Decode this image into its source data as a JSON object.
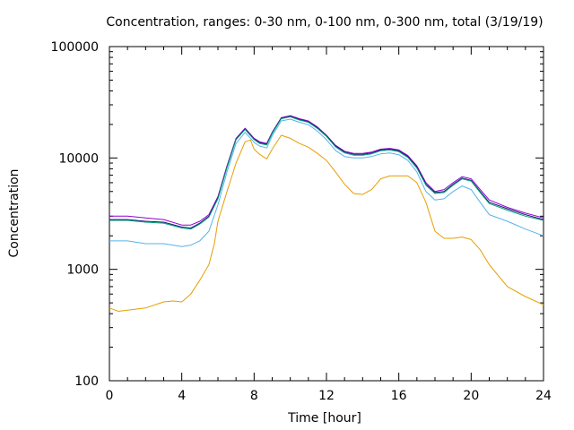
{
  "chart_data": {
    "type": "line",
    "title": "Concentration, ranges: 0-30 nm, 0-100 nm, 0-300 nm, total (3/19/19)",
    "xlabel": "Time [hour]",
    "ylabel": "Concentration",
    "xlim": [
      0,
      24
    ],
    "ylim": [
      100,
      100000
    ],
    "yscale": "log",
    "xticks": [
      "0",
      "4",
      "8",
      "12",
      "16",
      "20",
      "24"
    ],
    "yticks": [
      "100",
      "1000",
      "10000",
      "100000"
    ],
    "grid": false,
    "colors": {
      "total": "#1a1a7a",
      "range_0_300": "#9400d3",
      "range_0_100": "#009e73",
      "range_0_30": "#56b4e9",
      "orange": "#e69f00"
    },
    "series": [
      {
        "key": "purple",
        "color": "#9400d3",
        "x": [
          0,
          1,
          2,
          3,
          4,
          4.5,
          5,
          5.5,
          6,
          6.5,
          7,
          7.5,
          8,
          8.3,
          8.7,
          9,
          9.5,
          10,
          10.5,
          11,
          11.5,
          12,
          12.5,
          13,
          13.5,
          14,
          14.5,
          15,
          15.5,
          16,
          16.5,
          17,
          17.5,
          18,
          18.5,
          19,
          19.5,
          20,
          20.5,
          21,
          22,
          23,
          24
        ],
        "y": [
          3000,
          3000,
          2900,
          2800,
          2500,
          2500,
          2700,
          3100,
          4500,
          8500,
          15000,
          18500,
          15000,
          14000,
          13500,
          17000,
          23000,
          24000,
          22500,
          21500,
          19000,
          16000,
          13000,
          11500,
          11000,
          11000,
          11300,
          12000,
          12200,
          11800,
          10500,
          8500,
          6000,
          5000,
          5200,
          6000,
          6800,
          6500,
          5200,
          4200,
          3600,
          3200,
          2900
        ]
      },
      {
        "key": "navy",
        "color": "#1a1a7a",
        "x": [
          0,
          1,
          2,
          3,
          4,
          4.5,
          5,
          5.5,
          6,
          6.5,
          7,
          7.5,
          8,
          8.3,
          8.7,
          9,
          9.5,
          10,
          10.5,
          11,
          11.5,
          12,
          12.5,
          13,
          13.5,
          14,
          14.5,
          15,
          15.5,
          16,
          16.5,
          17,
          17.5,
          18,
          18.5,
          19,
          19.5,
          20,
          20.5,
          21,
          22,
          23,
          24
        ],
        "y": [
          2800,
          2800,
          2700,
          2650,
          2400,
          2350,
          2600,
          3000,
          4400,
          8300,
          14800,
          18200,
          14800,
          13700,
          13300,
          16800,
          22800,
          23700,
          22200,
          21200,
          18700,
          15800,
          12800,
          11300,
          10800,
          10800,
          11100,
          11800,
          12000,
          11600,
          10300,
          8300,
          5800,
          4900,
          5000,
          5800,
          6600,
          6300,
          5000,
          4000,
          3500,
          3100,
          2800
        ]
      },
      {
        "key": "teal",
        "color": "#009e73",
        "x": [
          0,
          1,
          2,
          3,
          4,
          4.5,
          5,
          5.5,
          6,
          6.5,
          7,
          7.5,
          8,
          8.3,
          8.7,
          9,
          9.5,
          10,
          10.5,
          11,
          11.5,
          12,
          12.5,
          13,
          13.5,
          14,
          14.5,
          15,
          15.5,
          16,
          16.5,
          17,
          17.5,
          18,
          18.5,
          19,
          19.5,
          20,
          20.5,
          21,
          22,
          23,
          24
        ],
        "y": [
          2750,
          2750,
          2650,
          2600,
          2350,
          2300,
          2550,
          2950,
          4300,
          8200,
          14600,
          18000,
          14600,
          13500,
          13100,
          16600,
          22500,
          23400,
          21900,
          20900,
          18400,
          15600,
          12600,
          11100,
          10600,
          10600,
          10900,
          11600,
          11800,
          11400,
          10100,
          8100,
          5700,
          4800,
          4900,
          5700,
          6500,
          6200,
          4900,
          3900,
          3400,
          3000,
          2750
        ]
      },
      {
        "key": "skyblue",
        "color": "#56b4e9",
        "x": [
          0,
          1,
          2,
          3,
          4,
          4.5,
          5,
          5.5,
          6,
          6.5,
          7,
          7.5,
          8,
          8.3,
          8.7,
          9,
          9.5,
          10,
          10.5,
          11,
          11.5,
          12,
          12.5,
          13,
          13.5,
          14,
          14.5,
          15,
          15.5,
          16,
          16.5,
          17,
          17.5,
          18,
          18.5,
          19,
          19.5,
          20,
          20.5,
          21,
          22,
          23,
          24
        ],
        "y": [
          1800,
          1800,
          1700,
          1700,
          1600,
          1650,
          1800,
          2200,
          3800,
          7500,
          13500,
          17000,
          13800,
          12800,
          12300,
          15800,
          21500,
          22300,
          20900,
          19900,
          17400,
          14600,
          11700,
          10300,
          10000,
          10000,
          10300,
          10900,
          11100,
          10700,
          9500,
          7500,
          5000,
          4200,
          4300,
          5000,
          5600,
          5200,
          4000,
          3100,
          2700,
          2300,
          2000
        ]
      },
      {
        "key": "orange",
        "color": "#e69f00",
        "x": [
          0,
          0.5,
          1,
          2,
          3,
          3.5,
          4,
          4.5,
          5,
          5.5,
          5.8,
          6,
          6.5,
          7,
          7.5,
          7.8,
          8,
          8.3,
          8.7,
          9,
          9.5,
          10,
          10.5,
          11,
          11.5,
          12,
          12.5,
          13,
          13.5,
          14,
          14.5,
          15,
          15.5,
          16,
          16.5,
          17,
          17.5,
          18,
          18.5,
          19,
          19.5,
          20,
          20.5,
          21,
          22,
          23,
          24
        ],
        "y": [
          450,
          420,
          430,
          450,
          510,
          520,
          510,
          600,
          800,
          1100,
          1700,
          2700,
          5000,
          9000,
          14000,
          14500,
          12000,
          10800,
          9800,
          12000,
          16000,
          15000,
          13500,
          12500,
          11000,
          9500,
          7500,
          5800,
          4800,
          4700,
          5200,
          6500,
          6900,
          6900,
          6900,
          6000,
          4000,
          2200,
          1900,
          1900,
          1950,
          1850,
          1500,
          1100,
          700,
          570,
          480
        ]
      }
    ]
  }
}
